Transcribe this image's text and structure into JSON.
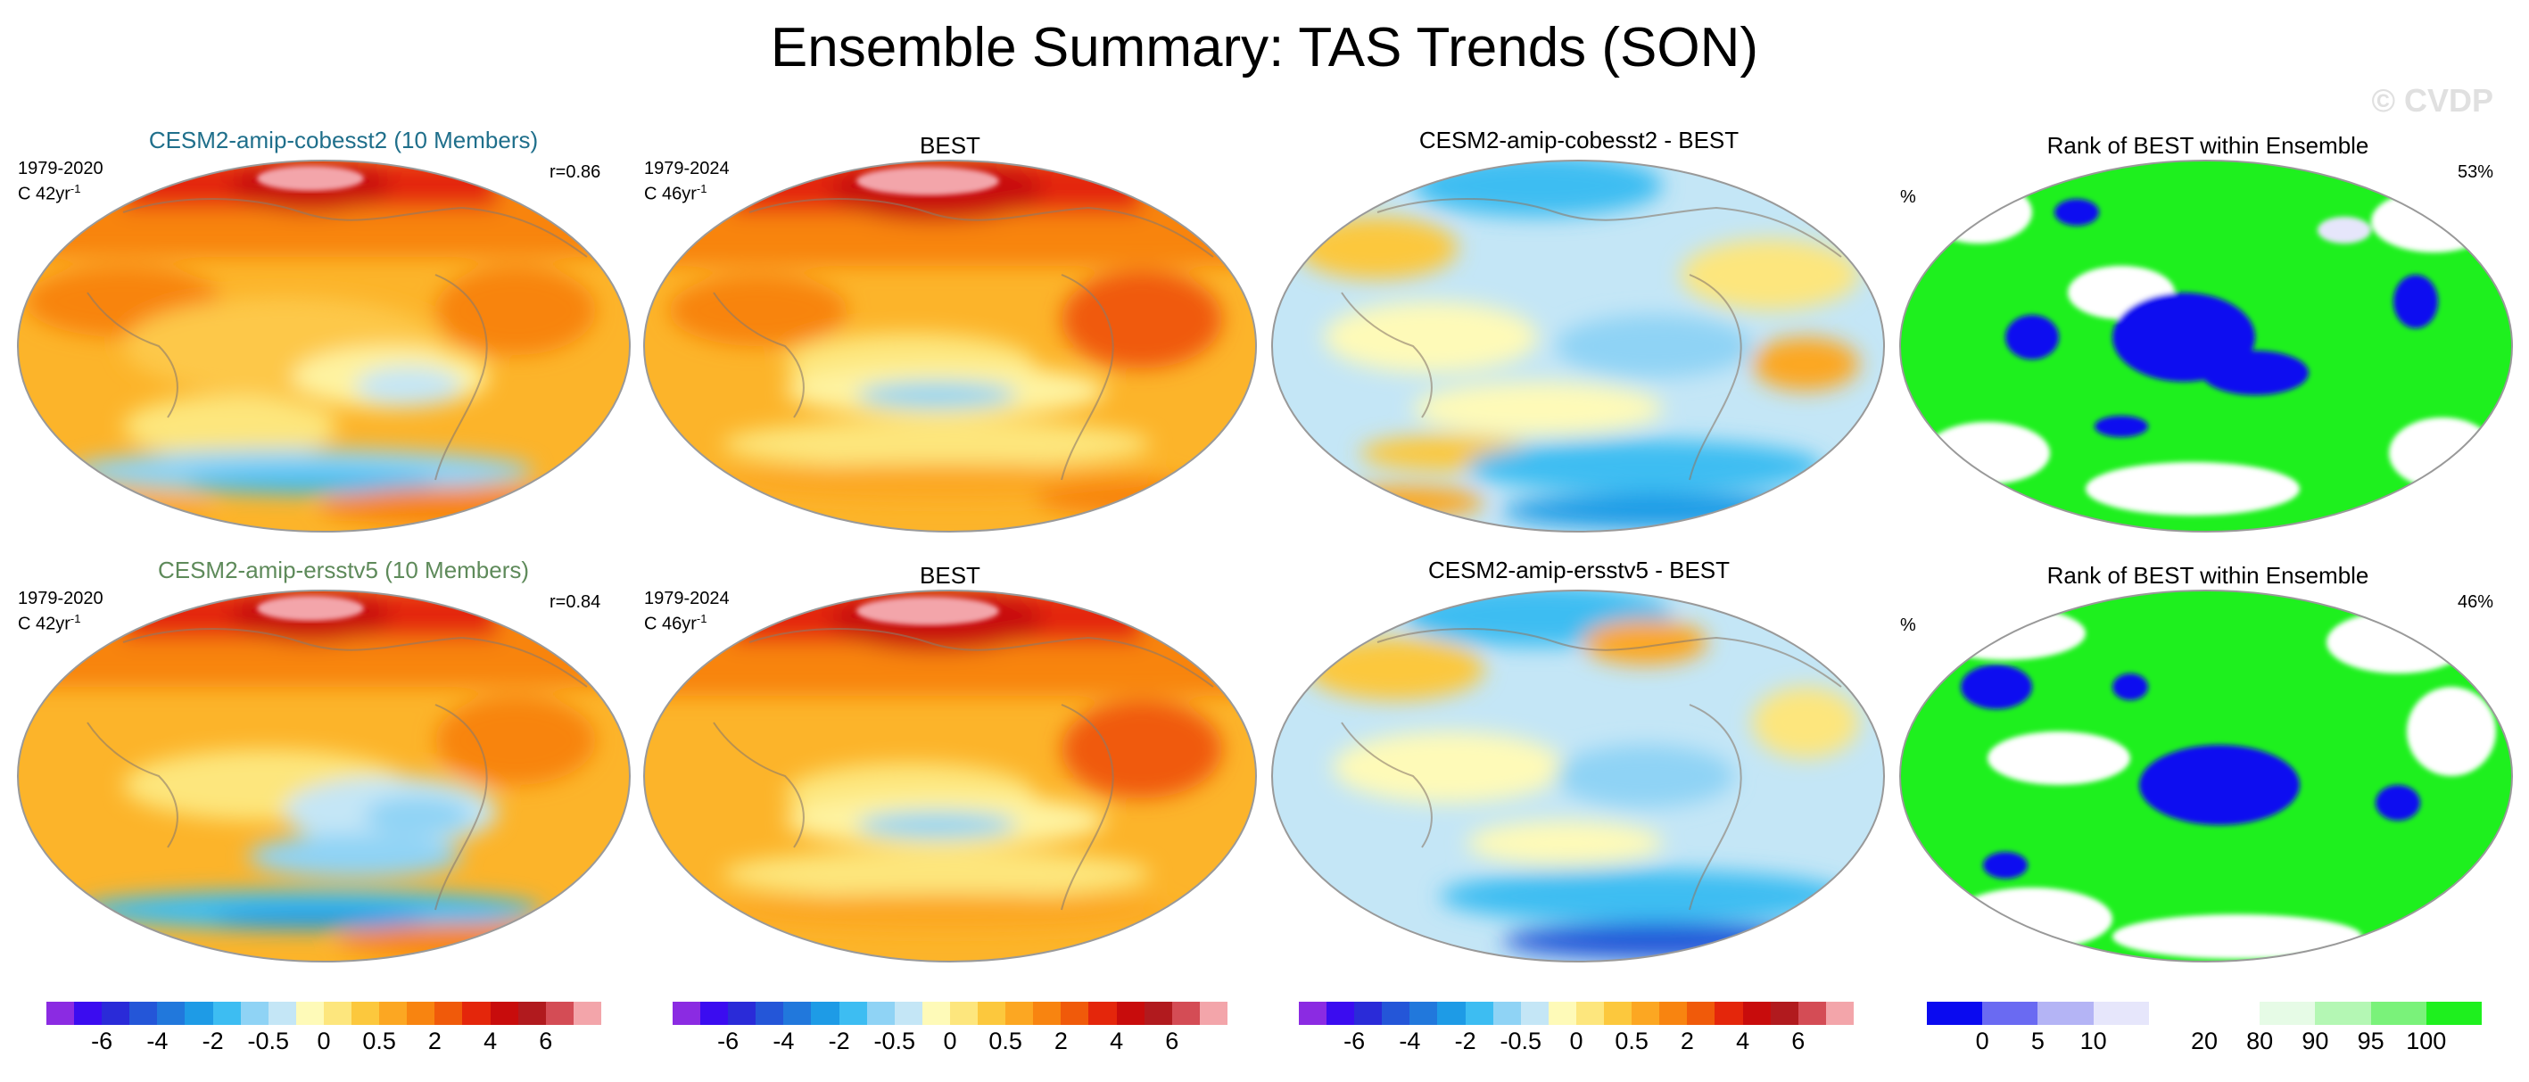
{
  "title": "Ensemble Summary: TAS Trends (SON)",
  "watermark": "© CVDP",
  "rows": [
    {
      "ensemble": {
        "title": "CESM2-amip-cobesst2 (10 Members)",
        "title_color": "#1f6f8b",
        "period": "1979-2020",
        "units": "C 42yr",
        "units_exp": "-1",
        "corr": "r=0.86"
      },
      "obs": {
        "title": "BEST",
        "period": "1979-2024",
        "units": "C 46yr",
        "units_exp": "-1"
      },
      "diff": {
        "title": "CESM2-amip-cobesst2 - BEST"
      },
      "rank": {
        "title": "Rank of BEST within Ensemble",
        "pct_symbol": "%",
        "pct_value": "53%"
      }
    },
    {
      "ensemble": {
        "title": "CESM2-amip-ersstv5 (10 Members)",
        "title_color": "#5e8a5a",
        "period": "1979-2020",
        "units": "C 42yr",
        "units_exp": "-1",
        "corr": "r=0.84"
      },
      "obs": {
        "title": "BEST",
        "period": "1979-2024",
        "units": "C 46yr",
        "units_exp": "-1"
      },
      "diff": {
        "title": "CESM2-amip-ersstv5 - BEST"
      },
      "rank": {
        "title": "Rank of BEST within Ensemble",
        "pct_symbol": "%",
        "pct_value": "46%"
      }
    }
  ],
  "colorbar_trend": {
    "colors": [
      "#8b2be2",
      "#3b0cf0",
      "#2a2bd8",
      "#2456d8",
      "#2178dc",
      "#1e9be6",
      "#3dbdf2",
      "#8fd3f5",
      "#c4e6f6",
      "#fefab8",
      "#fde67d",
      "#fcc83d",
      "#fca722",
      "#f88410",
      "#f05a0a",
      "#e4260b",
      "#c80c0c",
      "#b11a1e",
      "#d44c55",
      "#f3a5aa"
    ],
    "labels": [
      "-6",
      "-4",
      "-2",
      "-0.5",
      "0",
      "0.5",
      "2",
      "4",
      "6"
    ]
  },
  "colorbar_rank": {
    "colors": [
      "#0a0af0",
      "#6a6af2",
      "#b4b4f5",
      "#e6e6fb",
      "#ffffff",
      "#ffffff",
      "#e6fbe6",
      "#b4f7b4",
      "#7af27a",
      "#1ef01e"
    ],
    "labels": [
      "0",
      "5",
      "10",
      "20",
      "80",
      "90",
      "95",
      "100"
    ]
  }
}
